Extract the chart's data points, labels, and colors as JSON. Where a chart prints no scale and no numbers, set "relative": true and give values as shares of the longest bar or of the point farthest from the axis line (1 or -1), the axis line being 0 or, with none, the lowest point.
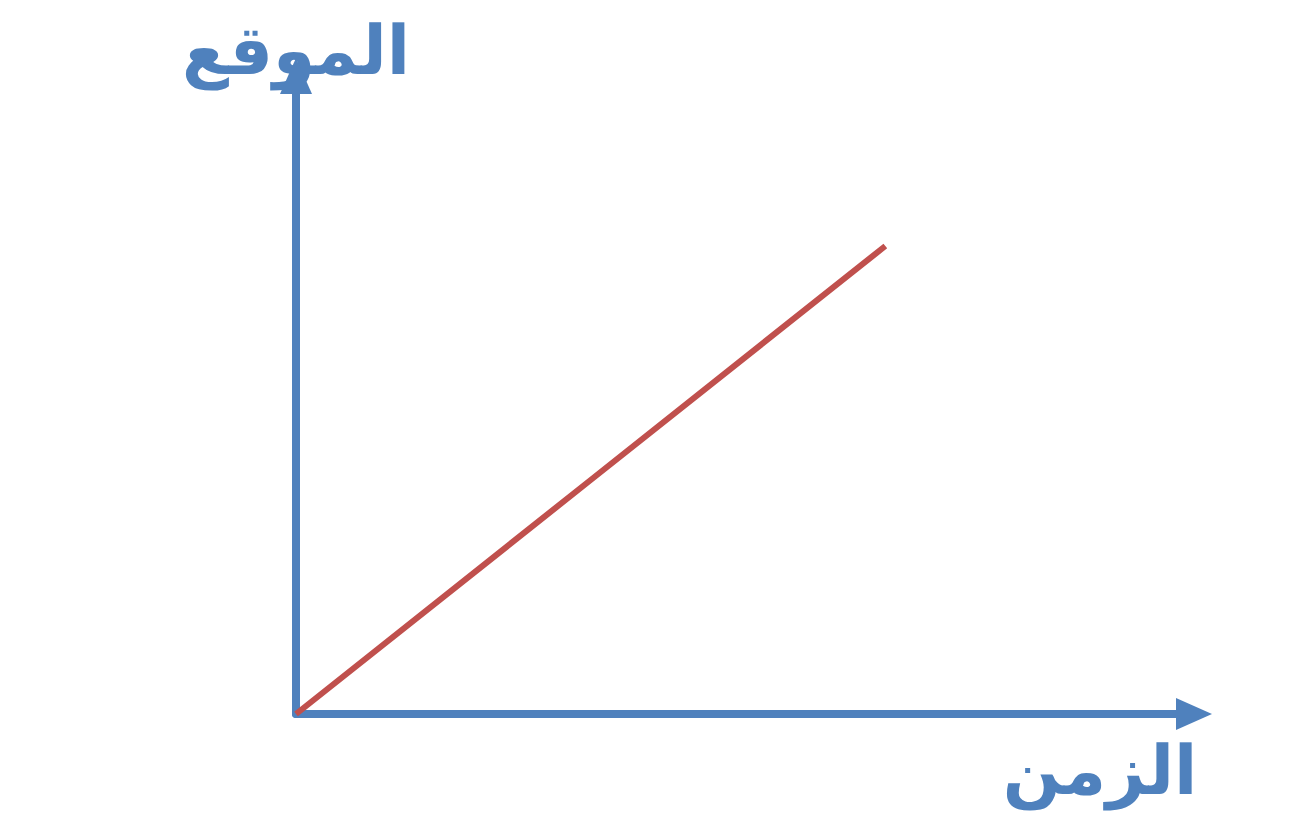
{
  "chart_data": {
    "type": "line",
    "xlabel": "الزمن",
    "ylabel": "الموقع",
    "relative": true,
    "marker": "none",
    "categories": [
      null,
      null,
      null,
      null
    ],
    "series": [
      {
        "color": "#c0504d",
        "values": [
          0,
          0.5,
          1,
          null
        ]
      }
    ]
  }
}
